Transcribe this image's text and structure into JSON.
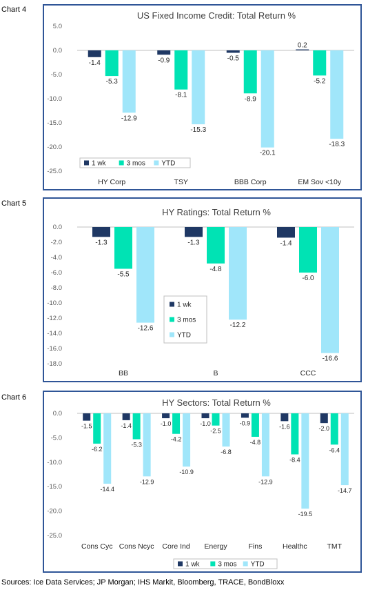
{
  "colors": {
    "1wk": "#1f3864",
    "3mos": "#00e3b4",
    "ytd": "#a0e6fa",
    "frame": "#2f5597",
    "grid": "#d9d9d9"
  },
  "labels": {
    "chart4": "Chart 4",
    "chart5": "Chart 5",
    "chart6": "Chart 6"
  },
  "sources": "Sources:  Ice Data Services; JP Morgan; IHS Markit, Bloomberg, TRACE, BondBloxx",
  "chart_data": [
    {
      "type": "bar",
      "title": "US Fixed Income Credit: Total Return %",
      "categories": [
        "HY Corp",
        "TSY",
        "BBB Corp",
        "EM Sov <10y"
      ],
      "series": [
        {
          "name": "1 wk",
          "values": [
            -1.4,
            -0.9,
            -0.5,
            0.2
          ]
        },
        {
          "name": "3 mos",
          "values": [
            -5.3,
            -8.1,
            -8.9,
            -5.2
          ]
        },
        {
          "name": "YTD",
          "values": [
            -12.9,
            -15.3,
            -20.1,
            -18.3
          ]
        }
      ],
      "ylim": [
        -25,
        5
      ],
      "yticks": [
        5,
        0,
        -5,
        -10,
        -15,
        -20,
        -25
      ],
      "ytick_labels": [
        "5.0",
        "0.0",
        "-5.0",
        "-10.0",
        "-15.0",
        "-20.0",
        "-25.0"
      ],
      "legend": "bottom-left",
      "grid": false
    },
    {
      "type": "bar",
      "title": "HY Ratings: Total Return %",
      "categories": [
        "BB",
        "B",
        "CCC"
      ],
      "series": [
        {
          "name": "1 wk",
          "values": [
            -1.3,
            -1.3,
            -1.4
          ]
        },
        {
          "name": "3 mos",
          "values": [
            -5.5,
            -4.8,
            -6.0
          ]
        },
        {
          "name": "YTD",
          "values": [
            -12.6,
            -12.2,
            -16.6
          ]
        }
      ],
      "ylim": [
        -18,
        0
      ],
      "yticks": [
        0,
        -2,
        -4,
        -6,
        -8,
        -10,
        -12,
        -14,
        -16,
        -18
      ],
      "ytick_labels": [
        "0.0",
        "-2.0",
        "-4.0",
        "-6.0",
        "-8.0",
        "-10.0",
        "-12.0",
        "-14.0",
        "-16.0",
        "-18.0"
      ],
      "legend": "center",
      "grid": false
    },
    {
      "type": "bar",
      "title": "HY Sectors: Total Return %",
      "categories": [
        "Cons Cyc",
        "Cons Ncyc",
        "Core Ind",
        "Energy",
        "Fins",
        "Healthc",
        "TMT"
      ],
      "series": [
        {
          "name": "1 wk",
          "values": [
            -1.5,
            -1.4,
            -1.0,
            -1.0,
            -0.9,
            -1.6,
            -2.0
          ]
        },
        {
          "name": "3 mos",
          "values": [
            -6.2,
            -5.3,
            -4.2,
            -2.5,
            -4.8,
            -8.4,
            -6.4
          ]
        },
        {
          "name": "YTD",
          "values": [
            -14.4,
            -12.9,
            -10.9,
            -6.8,
            -12.9,
            -19.5,
            -14.7
          ]
        }
      ],
      "ylim": [
        -25,
        0
      ],
      "yticks": [
        0,
        -5,
        -10,
        -15,
        -20,
        -25
      ],
      "ytick_labels": [
        "0.0",
        "-5.0",
        "-10.0",
        "-15.0",
        "-20.0",
        "-25.0"
      ],
      "legend": "bottom-center",
      "grid": false
    }
  ]
}
